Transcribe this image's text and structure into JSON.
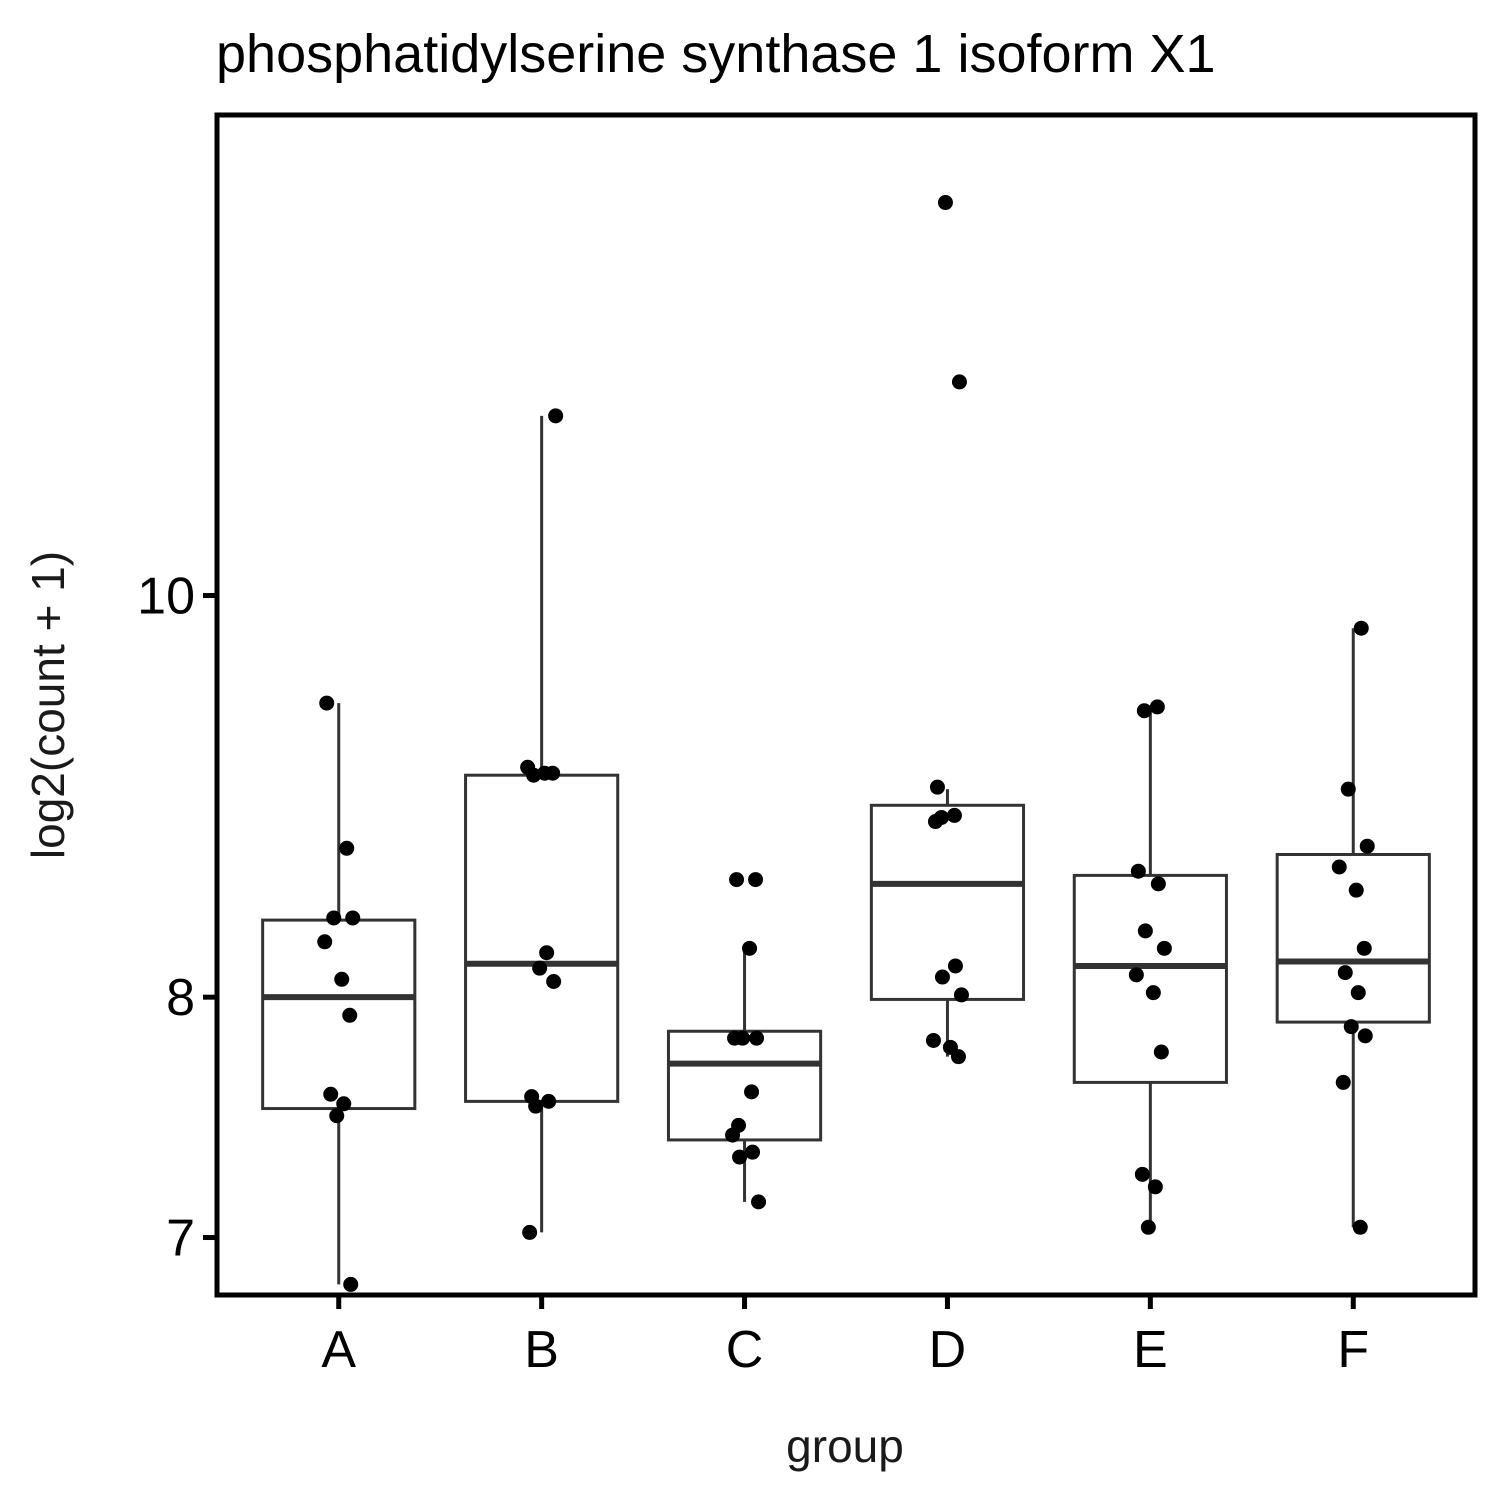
{
  "chart_data": {
    "type": "box",
    "title": "phosphatidylserine synthase 1 isoform X1",
    "xlabel": "group",
    "ylabel": "log2(count + 1)",
    "y_scale": "log",
    "ylim": [
      6.78,
      13.06
    ],
    "yticks": [
      7,
      8,
      10
    ],
    "categories": [
      "A",
      "B",
      "C",
      "D",
      "E",
      "F"
    ],
    "grid": false,
    "legend": "none",
    "colors": {
      "box": "#333333",
      "point": "#000000",
      "frame": "#000000"
    },
    "boxes": [
      {
        "group": "A",
        "min": 6.82,
        "q1": 7.52,
        "median": 8.0,
        "q3": 8.35,
        "max": 9.42
      },
      {
        "group": "B",
        "min": 7.02,
        "q1": 7.55,
        "median": 8.15,
        "q3": 9.05,
        "max": 11.05
      },
      {
        "group": "C",
        "min": 7.14,
        "q1": 7.39,
        "median": 7.71,
        "q3": 7.85,
        "max": 8.22
      },
      {
        "group": "D",
        "min": 7.74,
        "q1": 7.99,
        "median": 8.52,
        "q3": 8.9,
        "max": 8.98
      },
      {
        "group": "E",
        "min": 7.04,
        "q1": 7.63,
        "median": 8.14,
        "q3": 8.56,
        "max": 9.4
      },
      {
        "group": "F",
        "min": 7.04,
        "q1": 7.89,
        "median": 8.16,
        "q3": 8.66,
        "max": 9.82
      }
    ],
    "points": [
      {
        "group": "A",
        "values": [
          9.42,
          8.69,
          8.36,
          8.36,
          8.25,
          8.08,
          7.92,
          7.58,
          7.54,
          7.49,
          6.82
        ]
      },
      {
        "group": "B",
        "values": [
          11.05,
          9.09,
          9.06,
          9.06,
          9.05,
          8.2,
          8.13,
          8.07,
          7.57,
          7.55,
          7.53,
          7.02
        ]
      },
      {
        "group": "C",
        "values": [
          8.54,
          8.54,
          8.22,
          7.82,
          7.82,
          7.82,
          7.59,
          7.45,
          7.41,
          7.34,
          7.32,
          7.14
        ]
      },
      {
        "group": "D",
        "values": [
          12.44,
          11.26,
          8.99,
          8.85,
          8.84,
          8.82,
          8.14,
          8.09,
          8.01,
          7.81,
          7.78,
          7.74
        ]
      },
      {
        "group": "E",
        "values": [
          9.4,
          9.38,
          8.58,
          8.52,
          8.3,
          8.22,
          8.1,
          8.02,
          7.76,
          7.25,
          7.2,
          7.04
        ]
      },
      {
        "group": "F",
        "values": [
          9.82,
          8.98,
          8.7,
          8.6,
          8.49,
          8.22,
          8.11,
          8.02,
          7.87,
          7.83,
          7.63,
          7.04
        ]
      }
    ]
  }
}
